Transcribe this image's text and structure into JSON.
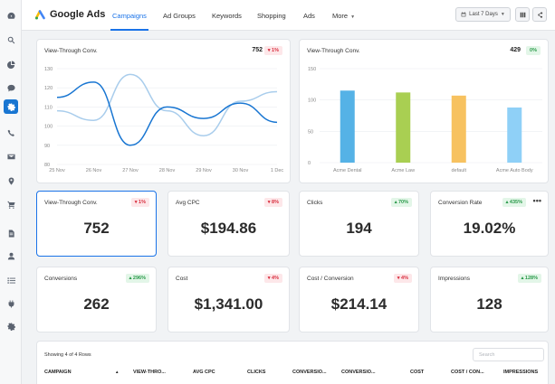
{
  "app": {
    "brand": "Google Ads"
  },
  "nav": {
    "tabs": [
      "Campaigns",
      "Ad Groups",
      "Keywords",
      "Shopping",
      "Ads",
      "More"
    ],
    "date_range": "Last 7 Days"
  },
  "sidebar": {
    "icons": [
      "dashboard-icon",
      "search-icon",
      "pie-chart-icon",
      "chat-icon",
      "settings-gear-icon",
      "phone-icon",
      "mail-icon",
      "location-pin-icon",
      "cart-icon",
      "document-icon",
      "user-icon",
      "list-icon",
      "plug-icon",
      "gear-icon"
    ],
    "active_index": 4
  },
  "line_card": {
    "title": "View-Through Conv.",
    "value": "752",
    "badge": "▾ 1%",
    "yticks": [
      "130",
      "120",
      "110",
      "100",
      "90",
      "80"
    ],
    "xticks": [
      "25 Nov",
      "26 Nov",
      "27 Nov",
      "28 Nov",
      "29 Nov",
      "30 Nov",
      "1 Dec"
    ]
  },
  "bar_card": {
    "title": "View-Through Conv.",
    "value": "429",
    "badge": "0%",
    "yticks": [
      "150",
      "100",
      "50",
      "0"
    ]
  },
  "chart_data": [
    {
      "type": "line",
      "title": "View-Through Conv.",
      "x": [
        "25 Nov",
        "26 Nov",
        "27 Nov",
        "28 Nov",
        "29 Nov",
        "30 Nov",
        "1 Dec"
      ],
      "ylim": [
        80,
        130
      ],
      "grid": true,
      "series": [
        {
          "values": [
            115,
            123,
            90,
            110,
            104,
            112,
            102
          ],
          "color": "#1976d2"
        },
        {
          "values": [
            108,
            103,
            127,
            108,
            95,
            113,
            118
          ],
          "color": "#a9cdec"
        }
      ]
    },
    {
      "type": "bar",
      "title": "View-Through Conv.",
      "categories": [
        "Acme Dental",
        "Acme Law",
        "default",
        "Acme Auto Body"
      ],
      "values": [
        115,
        112,
        107,
        88
      ],
      "colors": [
        "#55b2e6",
        "#a9cf52",
        "#f7c260",
        "#8fd0f7"
      ],
      "ylim": [
        0,
        150
      ],
      "grid": true
    }
  ],
  "kpis": [
    {
      "title": "View-Through Conv.",
      "badge": "▾ 1%",
      "trend": "neg",
      "value": "752"
    },
    {
      "title": "Avg CPC",
      "badge": "▾ 8%",
      "trend": "neg",
      "value": "$194.86"
    },
    {
      "title": "Clicks",
      "badge": "▴ 70%",
      "trend": "pos",
      "value": "194"
    },
    {
      "title": "Conversion Rate",
      "badge": "▴ 435%",
      "trend": "pos",
      "value": "19.02%"
    },
    {
      "title": "Conversions",
      "badge": "▴ 296%",
      "trend": "pos",
      "value": "262"
    },
    {
      "title": "Cost",
      "badge": "▾ 4%",
      "trend": "neg",
      "value": "$1,341.00"
    },
    {
      "title": "Cost / Conversion",
      "badge": "▾ 4%",
      "trend": "neg",
      "value": "$214.14"
    },
    {
      "title": "Impressions",
      "badge": "▴ 128%",
      "trend": "pos",
      "value": "128"
    }
  ],
  "table": {
    "rows_info": "Showing 4 of 4 Rows",
    "search_placeholder": "Search",
    "columns": [
      "CAMPAIGN",
      "VIEW-THRO...",
      "AVG CPC",
      "CLICKS",
      "CONVERSIO...",
      "CONVERSIO...",
      "COST",
      "COST / CON...",
      "IMPRESSIONS"
    ],
    "sort_indicator": "▲"
  },
  "colors": {
    "accent": "#1a73e8",
    "negative": "#d93040",
    "positive": "#2a9a4a"
  }
}
